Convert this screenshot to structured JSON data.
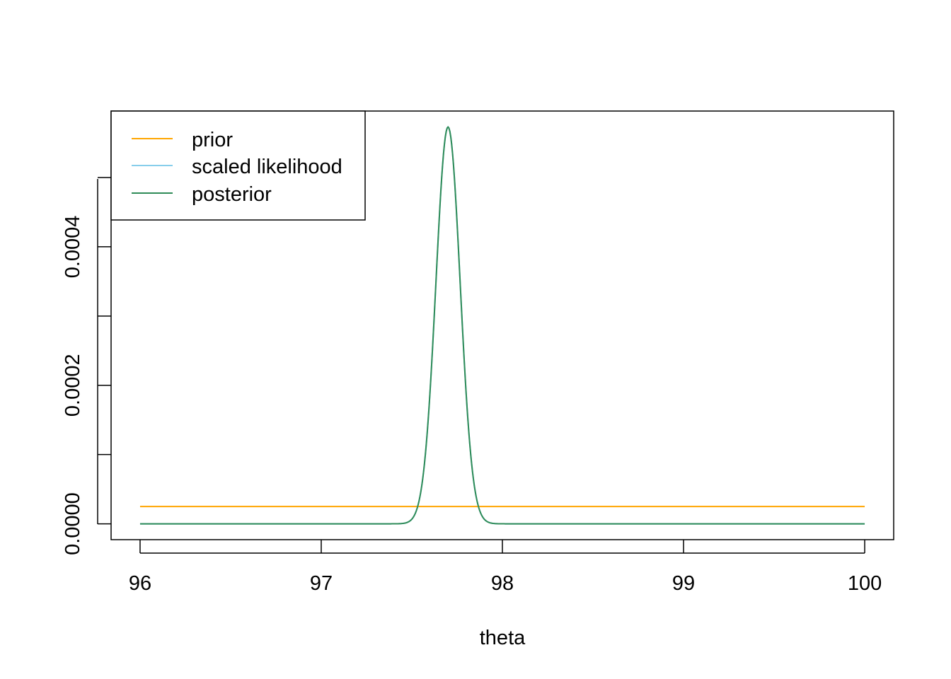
{
  "chart_data": {
    "type": "line",
    "title": "",
    "xlabel": "theta",
    "ylabel": "",
    "xlim": [
      95.84,
      100.16
    ],
    "ylim": [
      -2.29e-05,
      0.000596
    ],
    "x_ticks": [
      96,
      97,
      98,
      99,
      100
    ],
    "x_tick_labels": [
      "96",
      "97",
      "98",
      "99",
      "100"
    ],
    "y_ticks": [
      0,
      0.0001,
      0.0002,
      0.0003,
      0.0004,
      0.0005
    ],
    "y_tick_labels": [
      "0.0000",
      "",
      "0.0002",
      "",
      "0.0004",
      ""
    ],
    "grid": false,
    "legend": {
      "position": "top-left",
      "entries": [
        "prior",
        "scaled likelihood",
        "posterior"
      ]
    },
    "series": [
      {
        "name": "prior",
        "color": "#FFA500",
        "kind": "constant",
        "x_range": [
          96,
          100
        ],
        "value": 2.5e-05
      },
      {
        "name": "scaled likelihood",
        "color": "#87CEEB",
        "kind": "normal_density",
        "x_range": [
          96,
          100
        ],
        "mean": 97.7,
        "sd": 0.067,
        "peak": 0.000573
      },
      {
        "name": "posterior",
        "color": "#2E8B57",
        "kind": "normal_density",
        "x_range": [
          96,
          100
        ],
        "mean": 97.7,
        "sd": 0.067,
        "peak": 0.000573
      }
    ]
  }
}
